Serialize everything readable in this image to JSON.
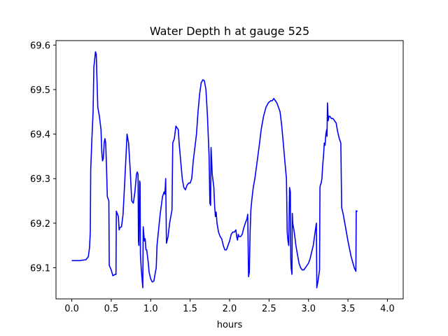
{
  "chart_data": {
    "type": "line",
    "title": "Water Depth h at gauge 525",
    "xlabel": "hours",
    "ylabel": "",
    "xlim": [
      -0.2,
      4.2
    ],
    "ylim": [
      69.03,
      69.61
    ],
    "xticks": [
      0.0,
      0.5,
      1.0,
      1.5,
      2.0,
      2.5,
      3.0,
      3.5,
      4.0
    ],
    "xtick_labels": [
      "0.0",
      "0.5",
      "1.0",
      "1.5",
      "2.0",
      "2.5",
      "3.0",
      "3.5",
      "4.0"
    ],
    "yticks": [
      69.1,
      69.2,
      69.3,
      69.4,
      69.5,
      69.6
    ],
    "ytick_labels": [
      "69.1",
      "69.2",
      "69.3",
      "69.4",
      "69.5",
      "69.6"
    ],
    "grid": false,
    "series": [
      {
        "color": "#0000ff",
        "points": [
          [
            0.0,
            69.116
          ],
          [
            0.1,
            69.116
          ],
          [
            0.18,
            69.118
          ],
          [
            0.21,
            69.125
          ],
          [
            0.225,
            69.145
          ],
          [
            0.235,
            69.18
          ],
          [
            0.24,
            69.32
          ],
          [
            0.255,
            69.39
          ],
          [
            0.27,
            69.45
          ],
          [
            0.28,
            69.55
          ],
          [
            0.3,
            69.585
          ],
          [
            0.31,
            69.58
          ],
          [
            0.32,
            69.52
          ],
          [
            0.33,
            69.46
          ],
          [
            0.35,
            69.44
          ],
          [
            0.37,
            69.41
          ],
          [
            0.38,
            69.36
          ],
          [
            0.39,
            69.34
          ],
          [
            0.4,
            69.345
          ],
          [
            0.41,
            69.38
          ],
          [
            0.42,
            69.39
          ],
          [
            0.43,
            69.38
          ],
          [
            0.44,
            69.33
          ],
          [
            0.45,
            69.26
          ],
          [
            0.46,
            69.255
          ],
          [
            0.47,
            69.25
          ],
          [
            0.475,
            69.105
          ],
          [
            0.5,
            69.095
          ],
          [
            0.52,
            69.082
          ],
          [
            0.55,
            69.085
          ],
          [
            0.56,
            69.085
          ],
          [
            0.565,
            69.227
          ],
          [
            0.58,
            69.22
          ],
          [
            0.59,
            69.215
          ],
          [
            0.6,
            69.185
          ],
          [
            0.61,
            69.19
          ],
          [
            0.63,
            69.192
          ],
          [
            0.65,
            69.22
          ],
          [
            0.67,
            69.29
          ],
          [
            0.69,
            69.36
          ],
          [
            0.7,
            69.4
          ],
          [
            0.72,
            69.38
          ],
          [
            0.74,
            69.32
          ],
          [
            0.76,
            69.25
          ],
          [
            0.78,
            69.245
          ],
          [
            0.8,
            69.27
          ],
          [
            0.82,
            69.31
          ],
          [
            0.83,
            69.315
          ],
          [
            0.84,
            69.31
          ],
          [
            0.845,
            69.16
          ],
          [
            0.85,
            69.15
          ],
          [
            0.86,
            69.295
          ],
          [
            0.865,
            69.29
          ],
          [
            0.87,
            69.13
          ],
          [
            0.88,
            69.1
          ],
          [
            0.9,
            69.055
          ],
          [
            0.905,
            69.192
          ],
          [
            0.92,
            69.16
          ],
          [
            0.93,
            69.165
          ],
          [
            0.94,
            69.14
          ],
          [
            0.95,
            69.14
          ],
          [
            0.97,
            69.11
          ],
          [
            0.98,
            69.09
          ],
          [
            1.0,
            69.075
          ],
          [
            1.02,
            69.068
          ],
          [
            1.04,
            69.07
          ],
          [
            1.06,
            69.09
          ],
          [
            1.07,
            69.1
          ],
          [
            1.08,
            69.15
          ],
          [
            1.12,
            69.22
          ],
          [
            1.15,
            69.26
          ],
          [
            1.17,
            69.27
          ],
          [
            1.18,
            69.265
          ],
          [
            1.19,
            69.3
          ],
          [
            1.2,
            69.155
          ],
          [
            1.22,
            69.17
          ],
          [
            1.24,
            69.2
          ],
          [
            1.26,
            69.22
          ],
          [
            1.27,
            69.23
          ],
          [
            1.28,
            69.38
          ],
          [
            1.3,
            69.39
          ],
          [
            1.32,
            69.418
          ],
          [
            1.35,
            69.41
          ],
          [
            1.36,
            69.38
          ],
          [
            1.38,
            69.34
          ],
          [
            1.4,
            69.3
          ],
          [
            1.42,
            69.28
          ],
          [
            1.44,
            69.275
          ],
          [
            1.46,
            69.285
          ],
          [
            1.48,
            69.29
          ],
          [
            1.5,
            69.29
          ],
          [
            1.52,
            69.3
          ],
          [
            1.54,
            69.34
          ],
          [
            1.56,
            69.37
          ],
          [
            1.58,
            69.4
          ],
          [
            1.6,
            69.45
          ],
          [
            1.62,
            69.49
          ],
          [
            1.64,
            69.515
          ],
          [
            1.66,
            69.522
          ],
          [
            1.68,
            69.52
          ],
          [
            1.7,
            69.5
          ],
          [
            1.72,
            69.44
          ],
          [
            1.74,
            69.35
          ],
          [
            1.75,
            69.245
          ],
          [
            1.76,
            69.24
          ],
          [
            1.765,
            69.37
          ],
          [
            1.77,
            69.35
          ],
          [
            1.78,
            69.31
          ],
          [
            1.8,
            69.28
          ],
          [
            1.81,
            69.24
          ],
          [
            1.82,
            69.215
          ],
          [
            1.83,
            69.225
          ],
          [
            1.84,
            69.2
          ],
          [
            1.86,
            69.18
          ],
          [
            1.88,
            69.17
          ],
          [
            1.9,
            69.165
          ],
          [
            1.92,
            69.15
          ],
          [
            1.94,
            69.14
          ],
          [
            1.96,
            69.14
          ],
          [
            1.98,
            69.15
          ],
          [
            2.0,
            69.16
          ],
          [
            2.02,
            69.175
          ],
          [
            2.04,
            69.18
          ],
          [
            2.06,
            69.18
          ],
          [
            2.08,
            69.185
          ],
          [
            2.09,
            69.17
          ],
          [
            2.1,
            69.162
          ],
          [
            2.11,
            69.175
          ],
          [
            2.12,
            69.17
          ],
          [
            2.14,
            69.17
          ],
          [
            2.16,
            69.175
          ],
          [
            2.18,
            69.19
          ],
          [
            2.2,
            69.2
          ],
          [
            2.22,
            69.21
          ],
          [
            2.23,
            69.22
          ],
          [
            2.24,
            69.08
          ],
          [
            2.25,
            69.09
          ],
          [
            2.26,
            69.18
          ],
          [
            2.27,
            69.23
          ],
          [
            2.28,
            69.25
          ],
          [
            2.3,
            69.28
          ],
          [
            2.32,
            69.3
          ],
          [
            2.35,
            69.34
          ],
          [
            2.38,
            69.38
          ],
          [
            2.4,
            69.41
          ],
          [
            2.43,
            69.44
          ],
          [
            2.46,
            69.46
          ],
          [
            2.49,
            69.47
          ],
          [
            2.52,
            69.475
          ],
          [
            2.54,
            69.475
          ],
          [
            2.56,
            69.48
          ],
          [
            2.58,
            69.475
          ],
          [
            2.6,
            69.47
          ],
          [
            2.62,
            69.46
          ],
          [
            2.64,
            69.45
          ],
          [
            2.66,
            69.42
          ],
          [
            2.68,
            69.38
          ],
          [
            2.7,
            69.34
          ],
          [
            2.72,
            69.3
          ],
          [
            2.73,
            69.18
          ],
          [
            2.74,
            69.16
          ],
          [
            2.75,
            69.15
          ],
          [
            2.76,
            69.28
          ],
          [
            2.77,
            69.27
          ],
          [
            2.775,
            69.12
          ],
          [
            2.78,
            69.1
          ],
          [
            2.79,
            69.085
          ],
          [
            2.795,
            69.222
          ],
          [
            2.8,
            69.2
          ],
          [
            2.82,
            69.18
          ],
          [
            2.84,
            69.15
          ],
          [
            2.86,
            69.13
          ],
          [
            2.88,
            69.11
          ],
          [
            2.9,
            69.1
          ],
          [
            2.92,
            69.095
          ],
          [
            2.94,
            69.095
          ],
          [
            2.96,
            69.1
          ],
          [
            2.98,
            69.105
          ],
          [
            3.0,
            69.11
          ],
          [
            3.02,
            69.12
          ],
          [
            3.04,
            69.135
          ],
          [
            3.06,
            69.15
          ],
          [
            3.08,
            69.175
          ],
          [
            3.1,
            69.2
          ],
          [
            3.105,
            69.055
          ],
          [
            3.12,
            69.07
          ],
          [
            3.14,
            69.095
          ],
          [
            3.145,
            69.28
          ],
          [
            3.15,
            69.285
          ],
          [
            3.16,
            69.29
          ],
          [
            3.17,
            69.3
          ],
          [
            3.18,
            69.33
          ],
          [
            3.19,
            69.35
          ],
          [
            3.2,
            69.38
          ],
          [
            3.21,
            69.375
          ],
          [
            3.22,
            69.4
          ],
          [
            3.23,
            69.41
          ],
          [
            3.235,
            69.395
          ],
          [
            3.24,
            69.47
          ],
          [
            3.25,
            69.43
          ],
          [
            3.26,
            69.44
          ],
          [
            3.27,
            69.44
          ],
          [
            3.29,
            69.435
          ],
          [
            3.31,
            69.435
          ],
          [
            3.33,
            69.43
          ],
          [
            3.35,
            69.425
          ],
          [
            3.37,
            69.405
          ],
          [
            3.39,
            69.39
          ],
          [
            3.41,
            69.38
          ],
          [
            3.42,
            69.235
          ],
          [
            3.44,
            69.22
          ],
          [
            3.46,
            69.2
          ],
          [
            3.5,
            69.16
          ],
          [
            3.54,
            69.125
          ],
          [
            3.58,
            69.1
          ],
          [
            3.6,
            69.092
          ],
          [
            3.605,
            69.228
          ],
          [
            3.62,
            69.226
          ]
        ]
      }
    ]
  }
}
